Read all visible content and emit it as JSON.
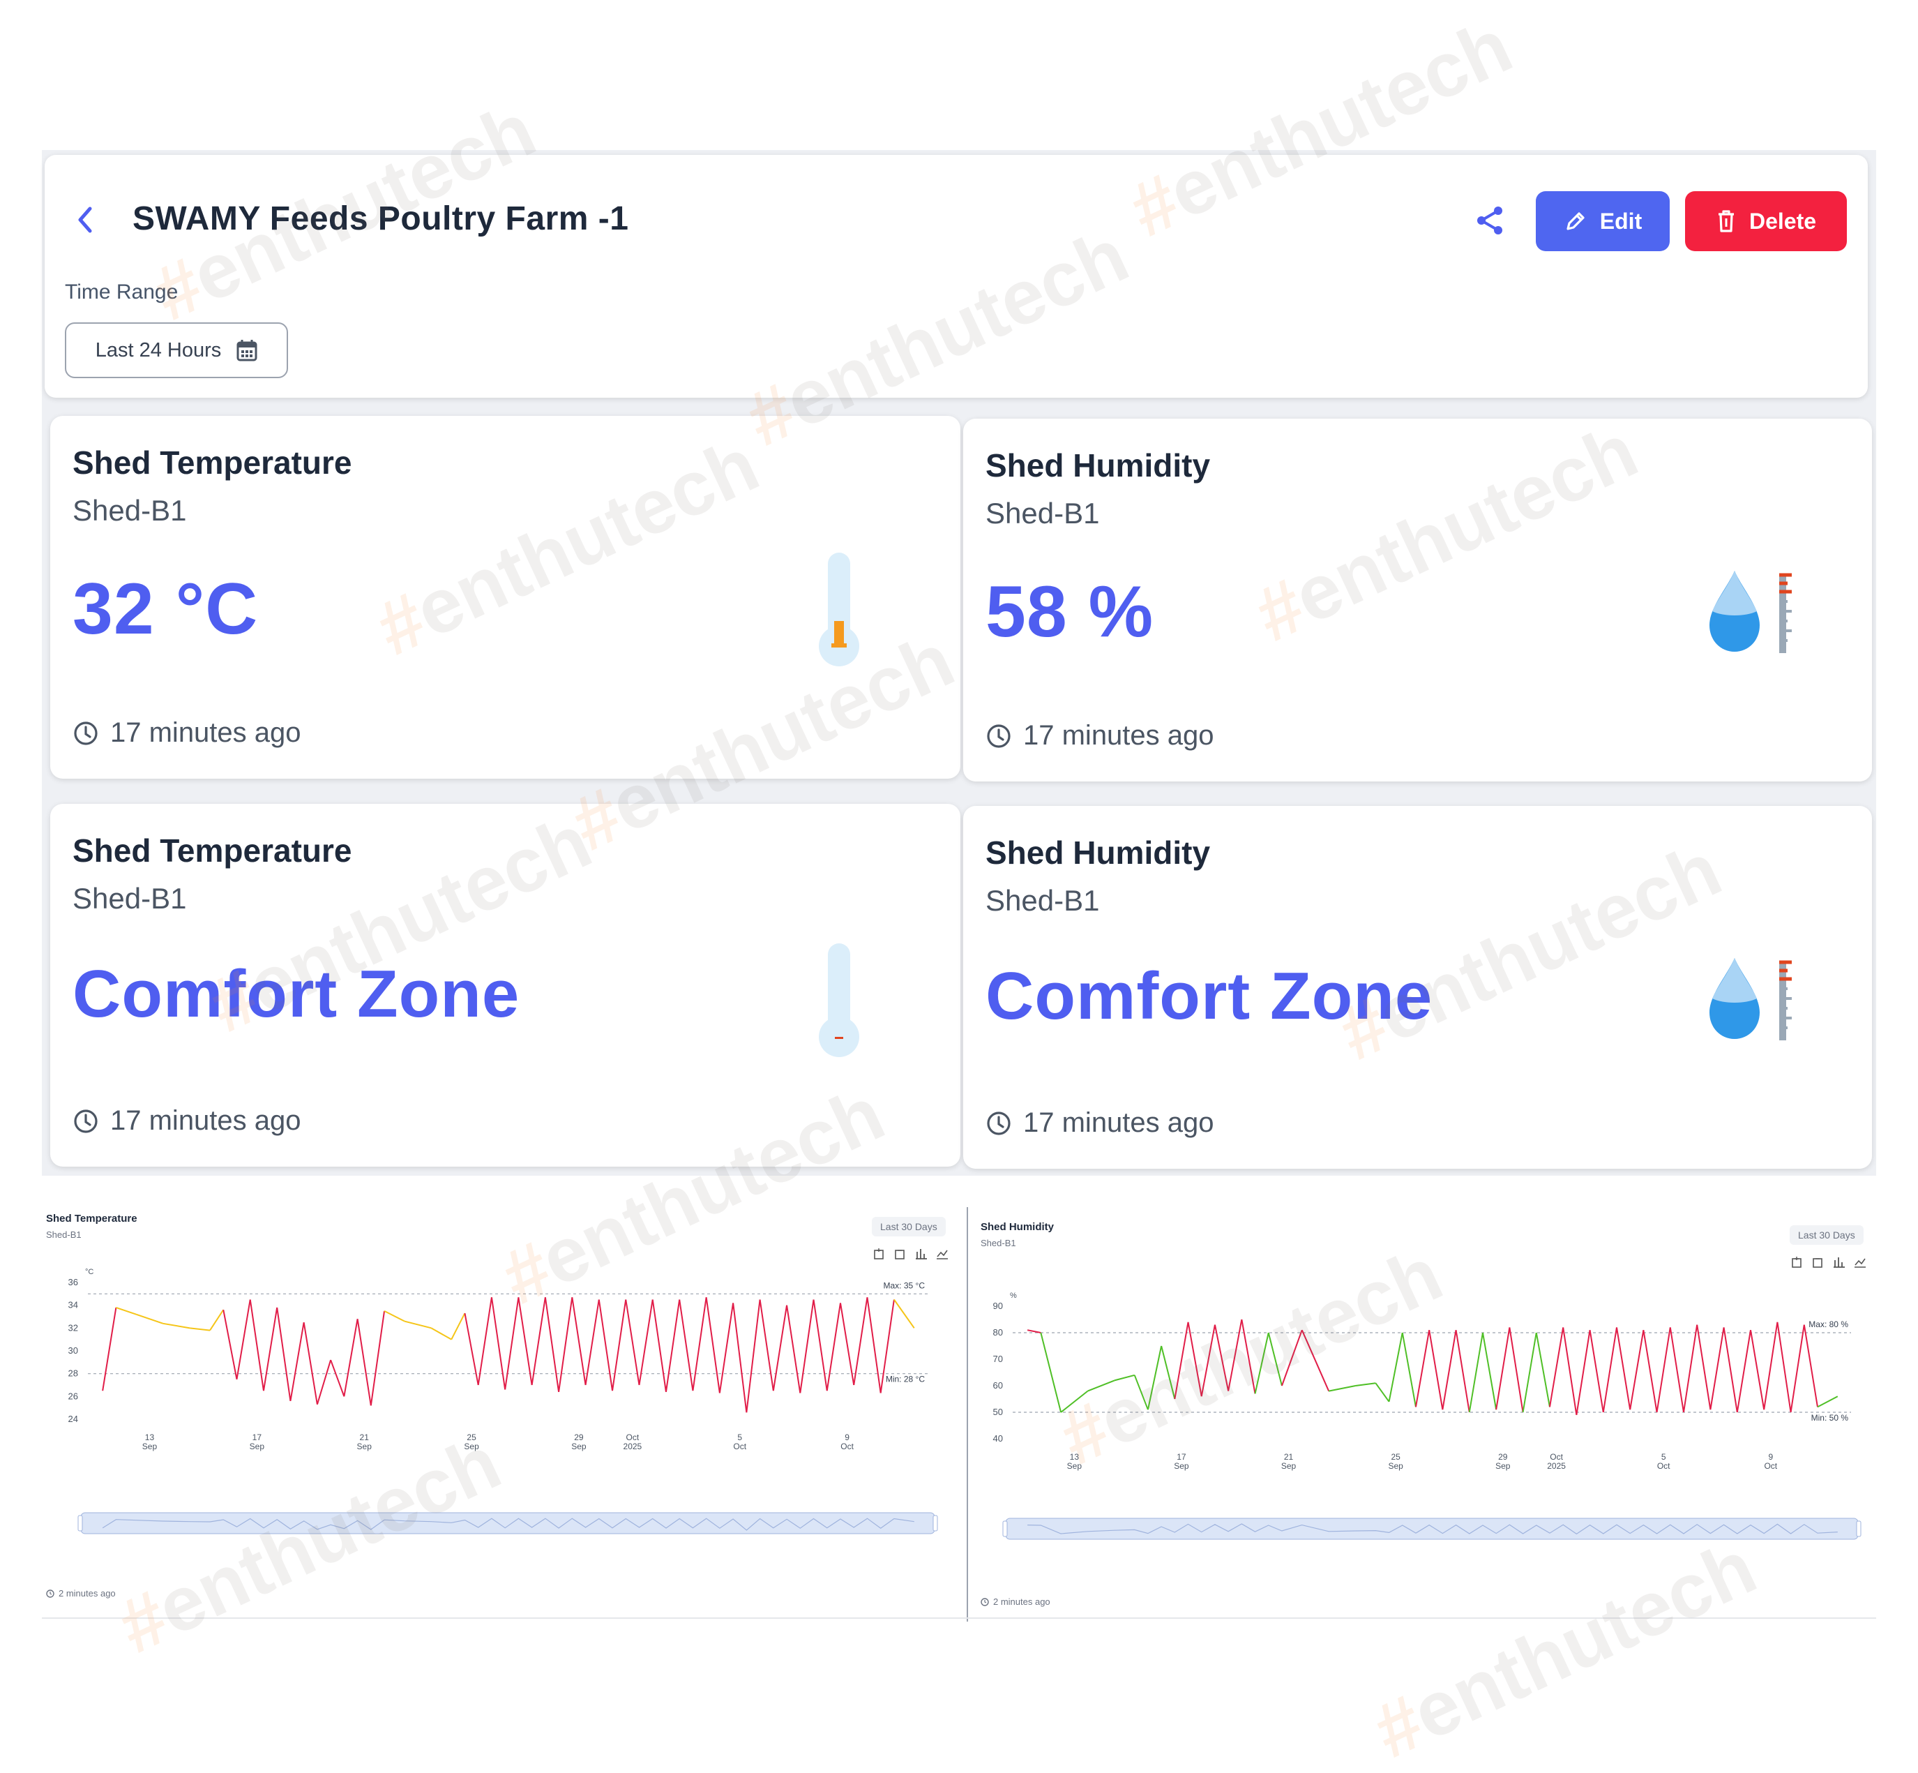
{
  "header": {
    "title": "SWAMY Feeds Poultry Farm -1",
    "edit_label": "Edit",
    "delete_label": "Delete",
    "time_range_label": "Time Range",
    "time_range_value": "Last 24 Hours"
  },
  "cards": [
    {
      "title": "Shed Temperature",
      "subtitle": "Shed-B1",
      "value": "32 °C",
      "time": "17 minutes ago",
      "icon": "thermometer-icon"
    },
    {
      "title": "Shed Humidity",
      "subtitle": "Shed-B1",
      "value": "58 %",
      "time": "17 minutes ago",
      "icon": "humidity-icon"
    },
    {
      "title": "Shed Temperature",
      "subtitle": "Shed-B1",
      "value": "Comfort Zone",
      "time": "17 minutes ago",
      "icon": "thermometer-icon"
    },
    {
      "title": "Shed Humidity",
      "subtitle": "Shed-B1",
      "value": "Comfort Zone",
      "time": "17 minutes ago",
      "icon": "humidity-icon"
    }
  ],
  "charts": [
    {
      "title": "Shed Temperature",
      "subtitle": "Shed-B1",
      "range": "Last 30 Days",
      "updated": "2 minutes ago",
      "unit": "°C",
      "max_label": "Max: 35 °C",
      "min_label": "Min: 28 °C",
      "y_ticks": [
        "36",
        "34",
        "32",
        "30",
        "28",
        "26",
        "24"
      ],
      "x_ticks": [
        [
          "13",
          "Sep"
        ],
        [
          "17",
          "Sep"
        ],
        [
          "21",
          "Sep"
        ],
        [
          "25",
          "Sep"
        ],
        [
          "29",
          "Sep"
        ],
        [
          "Oct",
          "2025"
        ],
        [
          "5",
          "Oct"
        ],
        [
          "9",
          "Oct"
        ]
      ]
    },
    {
      "title": "Shed Humidity",
      "subtitle": "Shed-B1",
      "range": "Last 30 Days",
      "updated": "2 minutes ago",
      "unit": "%",
      "max_label": "Max: 80 %",
      "min_label": "Min: 50 %",
      "y_ticks": [
        "90",
        "80",
        "70",
        "60",
        "50",
        "40"
      ],
      "x_ticks": [
        [
          "13",
          "Sep"
        ],
        [
          "17",
          "Sep"
        ],
        [
          "21",
          "Sep"
        ],
        [
          "25",
          "Sep"
        ],
        [
          "29",
          "Sep"
        ],
        [
          "Oct",
          "2025"
        ],
        [
          "5",
          "Oct"
        ],
        [
          "9",
          "Oct"
        ]
      ]
    }
  ],
  "chart_data": [
    {
      "type": "line",
      "title": "Shed Temperature",
      "ylabel": "°C",
      "ylim": [
        24,
        36
      ],
      "thresholds": {
        "max": 35,
        "min": 28
      },
      "colors": {
        "normal": "#f5c518",
        "below": "#e11d48",
        "threshold_line": "#9ca3af"
      },
      "x": [
        "11 Sep",
        "11 Sep",
        "12 Sep",
        "13 Sep",
        "14 Sep",
        "15 Sep",
        "15 Sep",
        "16 Sep",
        "16 Sep",
        "17 Sep",
        "17 Sep",
        "18 Sep",
        "18 Sep",
        "19 Sep",
        "19 Sep",
        "20 Sep",
        "20 Sep",
        "21 Sep",
        "21 Sep",
        "22 Sep",
        "23 Sep",
        "24 Sep",
        "24 Sep",
        "25 Sep",
        "25 Sep",
        "26 Sep",
        "26 Sep",
        "27 Sep",
        "27 Sep",
        "28 Sep",
        "28 Sep",
        "29 Sep",
        "29 Sep",
        "30 Sep",
        "30 Sep",
        "1 Oct",
        "1 Oct",
        "2 Oct",
        "2 Oct",
        "3 Oct",
        "3 Oct",
        "4 Oct",
        "4 Oct",
        "5 Oct",
        "5 Oct",
        "6 Oct",
        "6 Oct",
        "7 Oct",
        "7 Oct",
        "8 Oct",
        "8 Oct",
        "9 Oct",
        "9 Oct",
        "10 Oct",
        "10 Oct",
        "11 Oct"
      ],
      "values": [
        26.5,
        33.8,
        33.2,
        32.4,
        32,
        31.8,
        33.6,
        27.5,
        34.5,
        26.5,
        33.8,
        25.6,
        32.5,
        25.3,
        29.2,
        26,
        32.8,
        25.2,
        33.5,
        32.6,
        32,
        31,
        33.3,
        27,
        34.7,
        26.6,
        34.7,
        27,
        34.7,
        26.4,
        34.7,
        27,
        34.5,
        26.5,
        34.5,
        27,
        34.5,
        26.4,
        34.5,
        26.5,
        34.7,
        26.3,
        34.2,
        24.6,
        34.5,
        26.5,
        34,
        26.3,
        34.5,
        26.5,
        34.2,
        27,
        34.7,
        26.3,
        34.5,
        32
      ]
    },
    {
      "type": "line",
      "title": "Shed Humidity",
      "ylabel": "%",
      "ylim": [
        40,
        90
      ],
      "thresholds": {
        "max": 80,
        "min": 50
      },
      "colors": {
        "normal": "#4fbf26",
        "above": "#e11d48",
        "threshold_line": "#9ca3af"
      },
      "x": [
        "11 Sep",
        "11 Sep",
        "12 Sep",
        "13 Sep",
        "14 Sep",
        "15 Sep",
        "15 Sep",
        "16 Sep",
        "16 Sep",
        "17 Sep",
        "17 Sep",
        "18 Sep",
        "18 Sep",
        "19 Sep",
        "19 Sep",
        "20 Sep",
        "20 Sep",
        "21 Sep",
        "22 Sep",
        "23 Sep",
        "24 Sep",
        "24 Sep",
        "25 Sep",
        "25 Sep",
        "26 Sep",
        "26 Sep",
        "27 Sep",
        "27 Sep",
        "28 Sep",
        "28 Sep",
        "29 Sep",
        "29 Sep",
        "30 Sep",
        "30 Sep",
        "1 Oct",
        "1 Oct",
        "2 Oct",
        "2 Oct",
        "3 Oct",
        "3 Oct",
        "4 Oct",
        "4 Oct",
        "5 Oct",
        "5 Oct",
        "6 Oct",
        "6 Oct",
        "7 Oct",
        "7 Oct",
        "8 Oct",
        "8 Oct",
        "9 Oct",
        "9 Oct",
        "10 Oct",
        "10 Oct",
        "11 Oct"
      ],
      "values": [
        81,
        80,
        50,
        58,
        62,
        64,
        51,
        75,
        55,
        84,
        56,
        83,
        58,
        85,
        57,
        80,
        60,
        81,
        58,
        60,
        61,
        54,
        80,
        52,
        81,
        51,
        81,
        50,
        80,
        51,
        82,
        50,
        80,
        52,
        82,
        49,
        81,
        50,
        82,
        51,
        81,
        50,
        82,
        50,
        83,
        51,
        82,
        50,
        81,
        51,
        84,
        50,
        83,
        52,
        56
      ]
    }
  ]
}
